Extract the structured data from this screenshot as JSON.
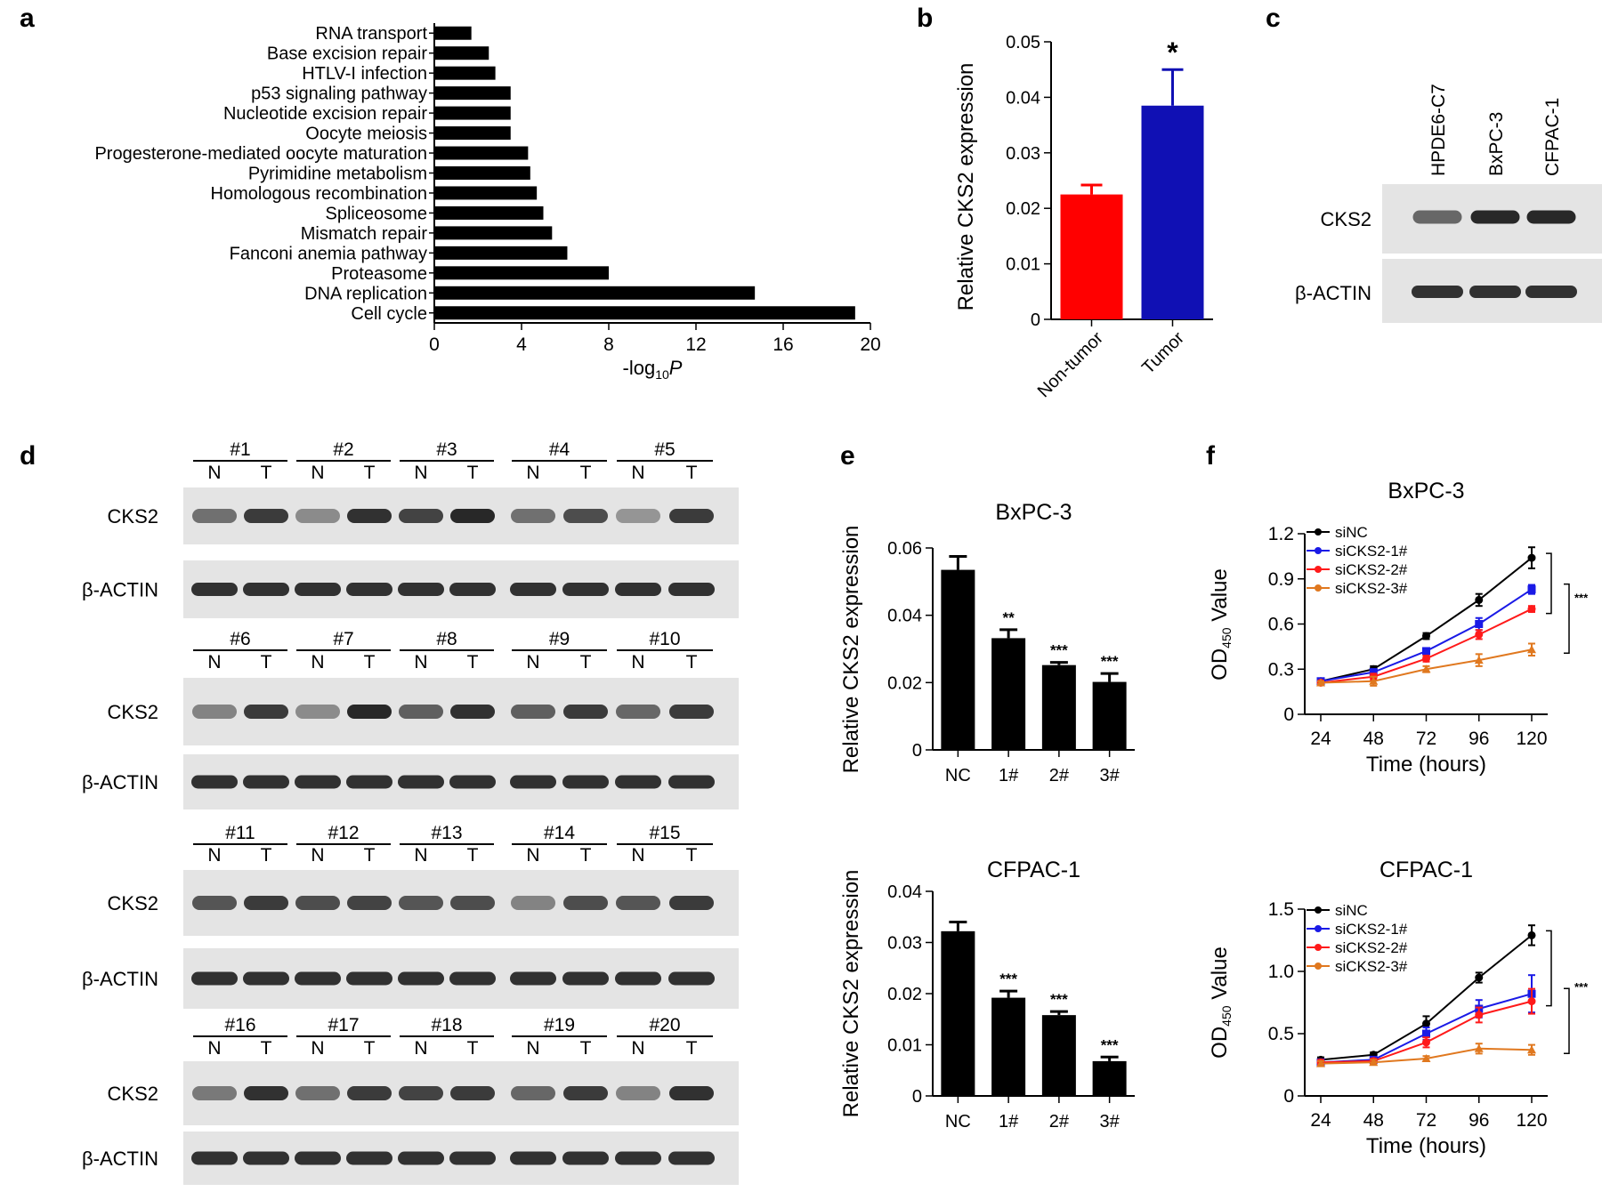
{
  "panel_labels": {
    "a": "a",
    "b": "b",
    "c": "c",
    "d": "d",
    "e": "e",
    "f": "f"
  },
  "colors": {
    "black": "#000000",
    "red": "#ff0000",
    "blue": "#1010b4",
    "siNC": "#000000",
    "siCKS2_1": "#1a1ae6",
    "siCKS2_2": "#ff1a1a",
    "siCKS2_3": "#e0781f",
    "blot_bg": "#e4e4e4",
    "band": "#141414"
  },
  "blot_c": {
    "lanes": [
      "HPDE6-C7",
      "BxPC-3",
      "CFPAC-1"
    ],
    "rows": [
      "CKS2",
      "β-ACTIN"
    ],
    "cks2_intensity": [
      0.6,
      0.95,
      0.95
    ],
    "actin_intensity": [
      0.9,
      0.9,
      0.9
    ]
  },
  "blot_d": {
    "n_label": "N",
    "t_label": "T",
    "cks2_label": "CKS2",
    "actin_label": "β-ACTIN",
    "groups": [
      {
        "samples": [
          "#1",
          "#2",
          "#3",
          "#4",
          "#5"
        ],
        "cks2_intensity": [
          0.55,
          0.85,
          0.4,
          0.9,
          0.8,
          0.95,
          0.55,
          0.75,
          0.35,
          0.85
        ]
      },
      {
        "samples": [
          "#6",
          "#7",
          "#8",
          "#9",
          "#10"
        ],
        "cks2_intensity": [
          0.45,
          0.85,
          0.4,
          0.95,
          0.65,
          0.9,
          0.65,
          0.85,
          0.6,
          0.85
        ]
      },
      {
        "samples": [
          "#11",
          "#12",
          "#13",
          "#14",
          "#15"
        ],
        "cks2_intensity": [
          0.7,
          0.85,
          0.75,
          0.8,
          0.7,
          0.75,
          0.45,
          0.75,
          0.7,
          0.85
        ]
      },
      {
        "samples": [
          "#16",
          "#17",
          "#18",
          "#19",
          "#20"
        ],
        "cks2_intensity": [
          0.5,
          0.9,
          0.55,
          0.85,
          0.8,
          0.85,
          0.6,
          0.85,
          0.45,
          0.9
        ]
      }
    ]
  },
  "chart_data": [
    {
      "panel": "a",
      "type": "bar",
      "orientation": "horizontal",
      "categories": [
        "RNA transport",
        "Base excision repair",
        "HTLV-I infection",
        "p53 signaling pathway",
        "Nucleotide excision repair",
        "Oocyte meiosis",
        "Progesterone-mediated oocyte maturation",
        "Pyrimidine metabolism",
        "Homologous recombination",
        "Spliceosome",
        "Mismatch repair",
        "Fanconi anemia pathway",
        "Proteasome",
        "DNA replication",
        "Cell cycle"
      ],
      "values": [
        1.7,
        2.5,
        2.8,
        3.5,
        3.5,
        3.5,
        4.3,
        4.4,
        4.7,
        5.0,
        5.4,
        6.1,
        8.0,
        14.7,
        19.3
      ],
      "xlabel": "-log",
      "xlabel_sub": "10",
      "xlabel_end": "P",
      "xlim": [
        0,
        20
      ],
      "ticks": [
        "0",
        "4",
        "8",
        "12",
        "16",
        "20"
      ]
    },
    {
      "panel": "b",
      "type": "bar",
      "categories": [
        "Non-tumor",
        "Tumor"
      ],
      "values": [
        0.0225,
        0.0385
      ],
      "errors": [
        0.0017,
        0.0065
      ],
      "colors": [
        "#ff0000",
        "#1010b4"
      ],
      "significance": [
        "",
        "*"
      ],
      "ylabel": "Relative CKS2 expression",
      "ylim": [
        0,
        0.05
      ],
      "ticks": [
        "0",
        "0.01",
        "0.02",
        "0.03",
        "0.04",
        "0.05"
      ]
    },
    {
      "panel": "e-top",
      "type": "bar",
      "title": "BxPC-3",
      "categories": [
        "NC",
        "1#",
        "2#",
        "3#"
      ],
      "values": [
        0.0535,
        0.0332,
        0.0252,
        0.0202
      ],
      "errors": [
        0.004,
        0.0025,
        0.0008,
        0.0025
      ],
      "significance": [
        "",
        "**",
        "***",
        "***"
      ],
      "ylabel": "Relative CKS2 expression",
      "ylim": [
        0,
        0.06
      ],
      "ticks": [
        "0",
        "0.02",
        "0.04",
        "0.06"
      ]
    },
    {
      "panel": "e-bottom",
      "type": "bar",
      "title": "CFPAC-1",
      "categories": [
        "NC",
        "1#",
        "2#",
        "3#"
      ],
      "values": [
        0.0322,
        0.0192,
        0.0158,
        0.0068
      ],
      "errors": [
        0.0018,
        0.0013,
        0.0007,
        0.0008
      ],
      "significance": [
        "",
        "***",
        "***",
        "***"
      ],
      "ylabel": "Relative CKS2 expression",
      "ylim": [
        0,
        0.04
      ],
      "ticks": [
        "0",
        "0.01",
        "0.02",
        "0.03",
        "0.04"
      ]
    },
    {
      "panel": "f-top",
      "type": "line",
      "title": "BxPC-3",
      "x": [
        24,
        48,
        72,
        96,
        120
      ],
      "series": [
        {
          "name": "siNC",
          "values": [
            0.22,
            0.3,
            0.52,
            0.76,
            1.04
          ],
          "errors": [
            0.01,
            0.02,
            0.02,
            0.04,
            0.07
          ]
        },
        {
          "name": "siCKS2-1#",
          "values": [
            0.22,
            0.28,
            0.42,
            0.6,
            0.83
          ],
          "errors": [
            0.01,
            0.02,
            0.02,
            0.04,
            0.03
          ]
        },
        {
          "name": "siCKS2-2#",
          "values": [
            0.21,
            0.25,
            0.37,
            0.53,
            0.7
          ],
          "errors": [
            0.01,
            0.02,
            0.02,
            0.03,
            0.02
          ]
        },
        {
          "name": "siCKS2-3#",
          "values": [
            0.21,
            0.22,
            0.3,
            0.36,
            0.43
          ],
          "errors": [
            0.01,
            0.03,
            0.02,
            0.04,
            0.04
          ]
        }
      ],
      "significance": "***",
      "xlabel": "Time (hours)",
      "ylabel_pre": "OD",
      "ylabel_sub": "450",
      "ylabel_post": " Value",
      "xlim": [
        24,
        120
      ],
      "ylim": [
        0,
        1.2
      ],
      "yticks": [
        "0",
        "0.3",
        "0.6",
        "0.9",
        "1.2"
      ],
      "xticks": [
        "24",
        "48",
        "72",
        "96",
        "120"
      ]
    },
    {
      "panel": "f-bottom",
      "type": "line",
      "title": "CFPAC-1",
      "x": [
        24,
        48,
        72,
        96,
        120
      ],
      "series": [
        {
          "name": "siNC",
          "values": [
            0.29,
            0.33,
            0.58,
            0.95,
            1.29
          ],
          "errors": [
            0.02,
            0.02,
            0.06,
            0.04,
            0.08
          ]
        },
        {
          "name": "siCKS2-1#",
          "values": [
            0.27,
            0.29,
            0.5,
            0.7,
            0.82
          ],
          "errors": [
            0.02,
            0.02,
            0.05,
            0.07,
            0.15
          ]
        },
        {
          "name": "siCKS2-2#",
          "values": [
            0.27,
            0.28,
            0.43,
            0.65,
            0.76
          ],
          "errors": [
            0.02,
            0.02,
            0.04,
            0.06,
            0.1
          ]
        },
        {
          "name": "siCKS2-3#",
          "values": [
            0.26,
            0.27,
            0.3,
            0.38,
            0.37
          ],
          "errors": [
            0.02,
            0.02,
            0.02,
            0.04,
            0.04
          ]
        }
      ],
      "significance": "***",
      "xlabel": "Time (hours)",
      "ylabel_pre": "OD",
      "ylabel_sub": "450",
      "ylabel_post": " Value",
      "xlim": [
        24,
        120
      ],
      "ylim": [
        0,
        1.5
      ],
      "yticks": [
        "0",
        "0.5",
        "1.0",
        "1.5"
      ],
      "xticks": [
        "24",
        "48",
        "72",
        "96",
        "120"
      ]
    }
  ]
}
